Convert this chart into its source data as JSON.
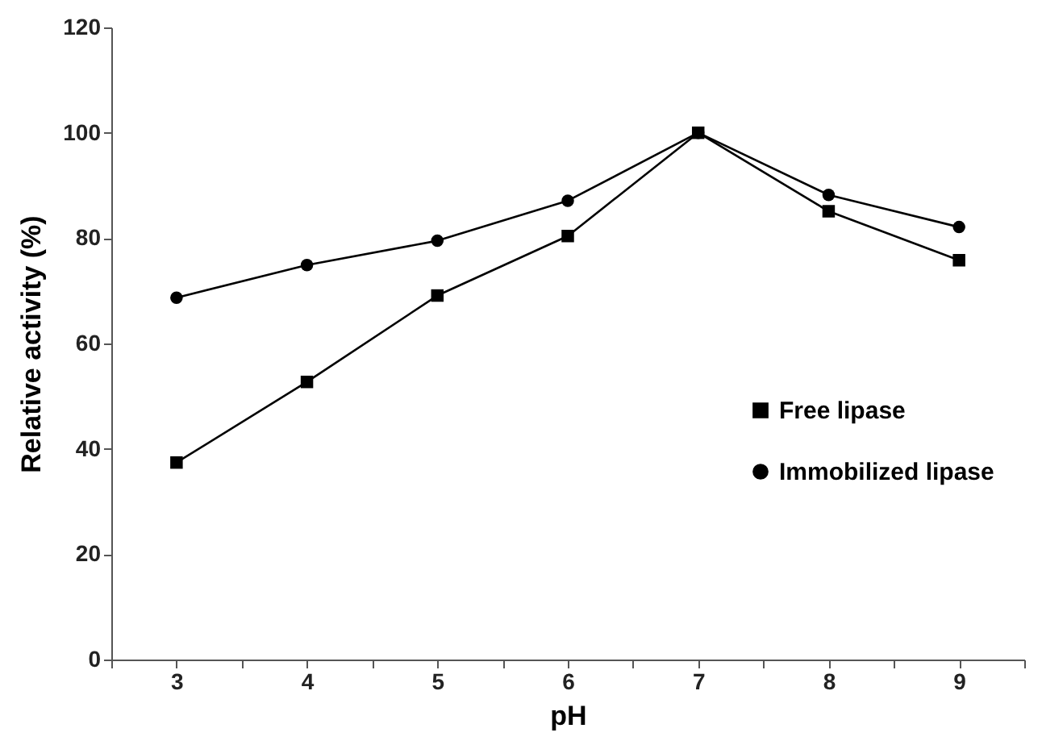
{
  "chart_data": {
    "type": "line",
    "xlabel": "pH",
    "ylabel": "Relative  activity (%)",
    "x": [
      3,
      4,
      5,
      6,
      7,
      8,
      9
    ],
    "series": [
      {
        "name": "Free lipase",
        "color": "#000000",
        "marker": "square",
        "values": [
          37.4,
          52.7,
          69.1,
          80.4,
          100,
          85.1,
          75.8
        ]
      },
      {
        "name": "Immobilized lipase",
        "color": "#000000",
        "marker": "circle",
        "values": [
          68.7,
          74.9,
          79.5,
          87.1,
          100,
          88.2,
          82.1
        ]
      }
    ],
    "xlim": [
      2.5,
      9.5
    ],
    "xticks": [
      {
        "value": 2.5,
        "label": null
      },
      3,
      {
        "value": 3.5,
        "label": null
      },
      4,
      {
        "value": 4.5,
        "label": null
      },
      5,
      {
        "value": 5.5,
        "label": null
      },
      6,
      {
        "value": 6.5,
        "label": null
      },
      7,
      {
        "value": 7.5,
        "label": null
      },
      8,
      {
        "value": 8.5,
        "label": null
      },
      9,
      {
        "value": 9.5,
        "label": null
      }
    ],
    "ylim": [
      0,
      120
    ],
    "yticks": [
      0,
      20,
      40,
      60,
      80,
      100,
      120
    ],
    "grid": false,
    "legend": "right",
    "line_style": "solid"
  }
}
